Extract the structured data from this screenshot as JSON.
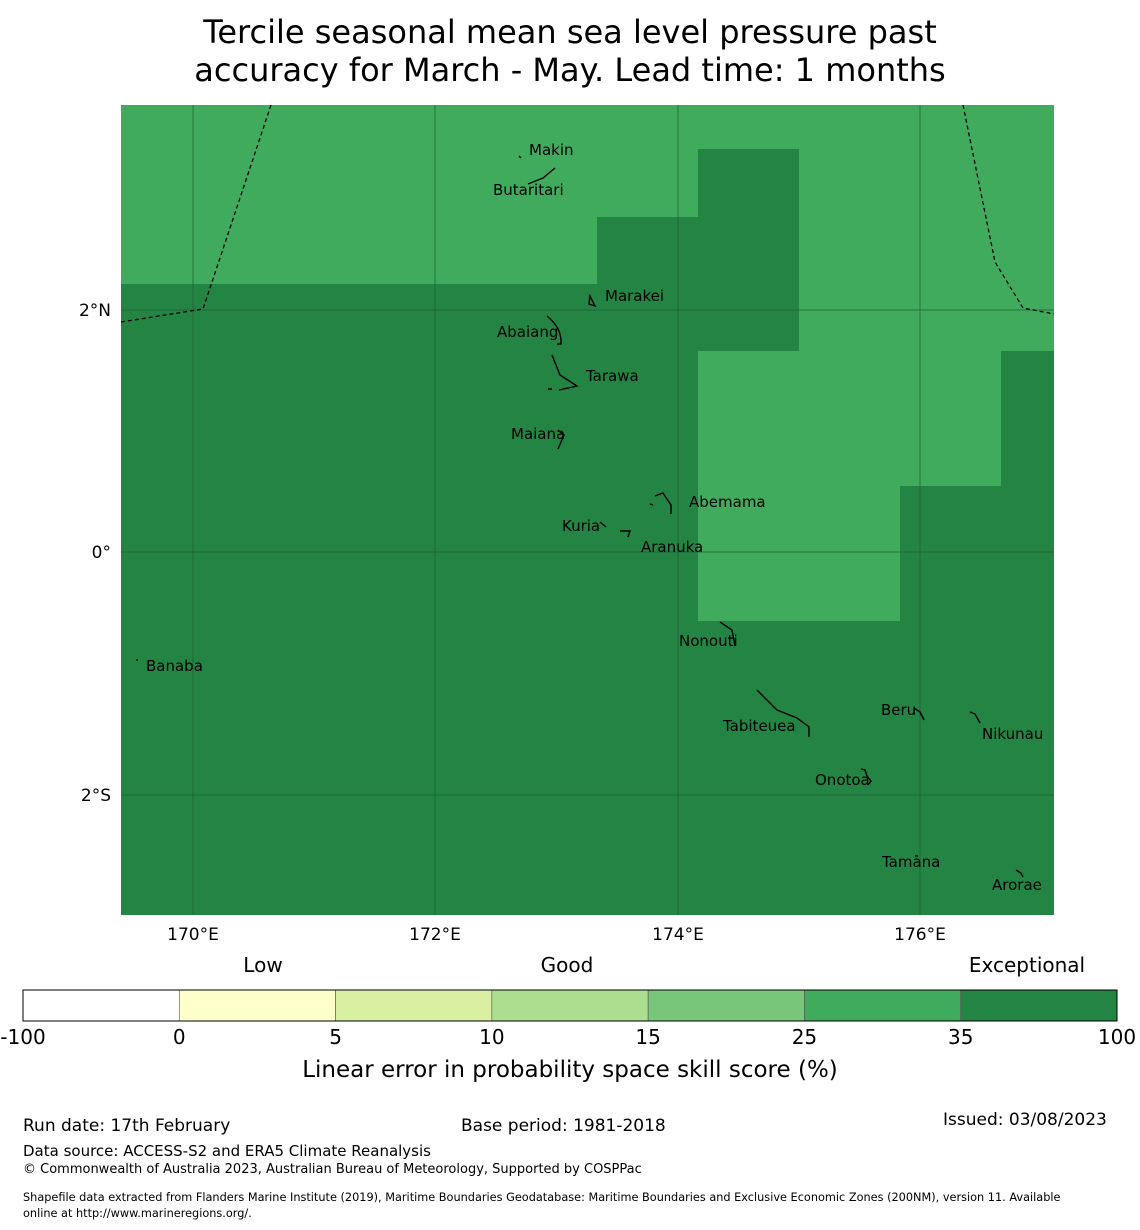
{
  "title_line1": "Tercile seasonal mean sea level pressure past",
  "title_line2": "accuracy for March - May. Lead time: 1 months",
  "map": {
    "lon_ticks": [
      "170°E",
      "172°E",
      "174°E",
      "176°E"
    ],
    "lat_ticks": [
      "2°N",
      "0°",
      "2°S"
    ],
    "colors": {
      "band_25_35": "#41ab5d",
      "band_35_100": "#238443",
      "grid": "#1a5c2e"
    },
    "islands": [
      "Makin",
      "Butaritari",
      "Marakei",
      "Abaiang",
      "Tarawa",
      "Maiana",
      "Abemama",
      "Kuria",
      "Aranuka",
      "Nonouti",
      "Banaba",
      "Beru",
      "Tabiteuea",
      "Nikunau",
      "Onotoa",
      "Tamana",
      "Arorae"
    ]
  },
  "colorbar": {
    "category_labels": [
      "Low",
      "Good",
      "Exceptional"
    ],
    "ticks": [
      "-100",
      "0",
      "5",
      "10",
      "15",
      "25",
      "35",
      "100"
    ],
    "colors": [
      "#ffffff",
      "#ffffcc",
      "#d9f0a3",
      "#addd8e",
      "#78c679",
      "#41ab5d",
      "#238443"
    ],
    "label": "Linear error in probability space skill score (%)"
  },
  "footer": {
    "run_date": "Run date: 17th February",
    "base_period": "Base period: 1981-2018",
    "issued": "Issued: 03/08/2023",
    "data_source": "Data source: ACCESS-S2 and ERA5 Climate Reanalysis",
    "copyright": "© Commonwealth of Australia 2023, Australian Bureau of Meteorology, Supported by COSPPac",
    "shapefile_line1": "Shapefile data extracted from Flanders Marine Institute (2019), Maritime Boundaries Geodatabase: Maritime Boundaries and Exclusive Economic Zones (200NM), version 11. Available",
    "shapefile_line2": "online at http://www.marineregions.org/."
  }
}
